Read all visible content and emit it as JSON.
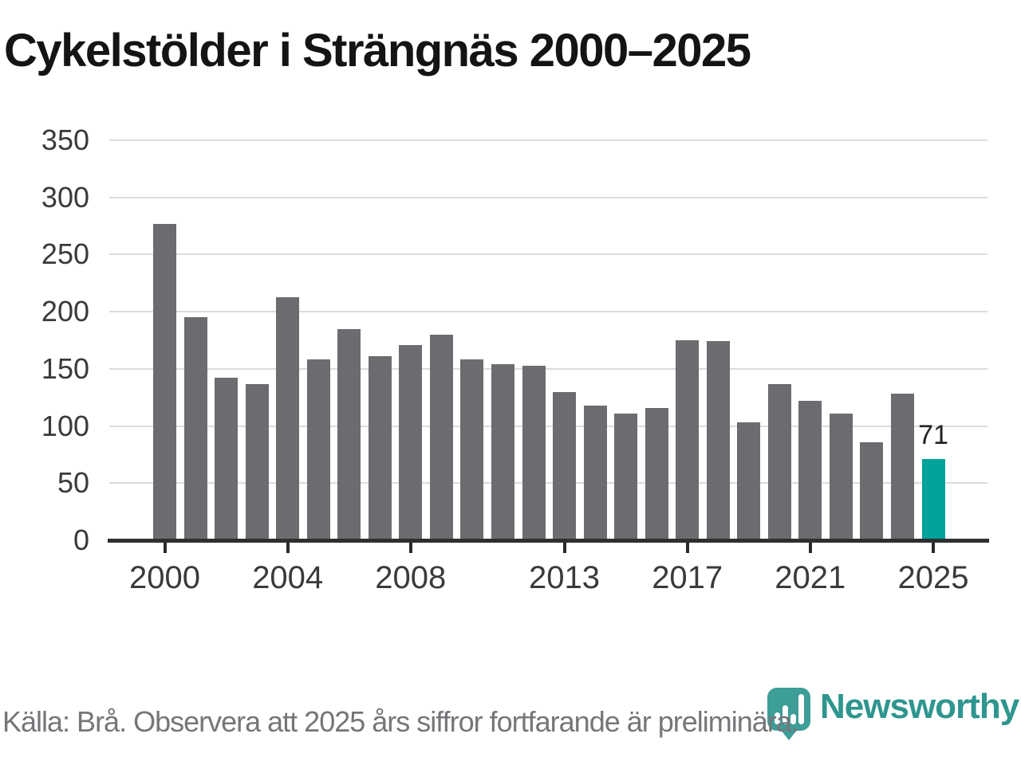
{
  "title": "Cykelstölder i Strängnäs 2000–2025",
  "source_note": "Källa: Brå. Observera att 2025 års siffror fortfarande är preliminära.",
  "branding": {
    "name": "Newsworthy",
    "logo_icon": "bar-chart-pin-icon",
    "logo_mark_color": "#3d9d97",
    "logo_text_color": "#2e968f"
  },
  "colors": {
    "bar": "#6c6c70",
    "highlight": "#00a29b",
    "gridline": "#dcdcdc",
    "axis": "#2f2f2f",
    "tick_text": "#3a3a3a",
    "title_text": "#141414",
    "footer_text": "#76767a"
  },
  "chart_data": {
    "type": "bar",
    "title": "Cykelstölder i Strängnäs 2000–2025",
    "xlabel": "",
    "ylabel": "",
    "categories": [
      2000,
      2001,
      2002,
      2003,
      2004,
      2005,
      2006,
      2007,
      2008,
      2009,
      2010,
      2011,
      2012,
      2013,
      2014,
      2015,
      2016,
      2017,
      2018,
      2019,
      2020,
      2021,
      2022,
      2023,
      2024,
      2025
    ],
    "values": [
      277,
      195,
      142,
      137,
      213,
      158,
      185,
      161,
      171,
      180,
      158,
      154,
      153,
      130,
      118,
      111,
      116,
      175,
      174,
      103,
      137,
      122,
      111,
      86,
      128,
      71
    ],
    "highlight_category": 2025,
    "highlight_value_label": "71",
    "ylim": [
      0,
      350
    ],
    "yticks": [
      0,
      50,
      100,
      150,
      200,
      250,
      300,
      350
    ],
    "xtick_labels": [
      "2000",
      "2004",
      "2008",
      "2013",
      "2017",
      "2021",
      "2025"
    ],
    "grid": "horizontal",
    "legend": "none"
  }
}
